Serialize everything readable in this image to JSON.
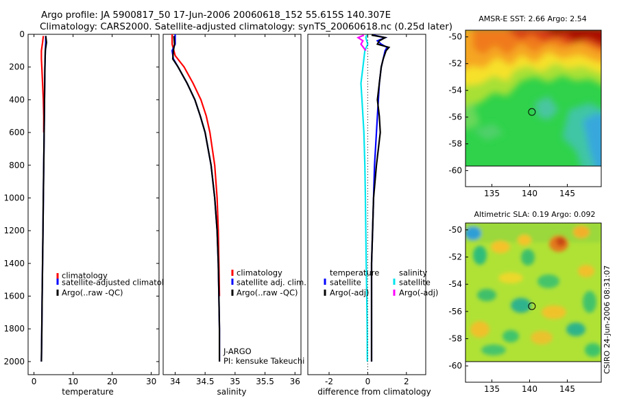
{
  "header": {
    "line1": "Argo profile: JA 5900817_50 17-Jun-2006 20060618_152 55.615S 140.307E",
    "line2": "Climatology: CARS2000. Satellite-adjusted climatology: synTS_20060618.nc (0.25d later)"
  },
  "colors": {
    "climatology": "#ff0000",
    "satellite": "#0000ff",
    "argo": "#000000",
    "sal_satellite": "#00e5ee",
    "sal_argo": "#ff00ff"
  },
  "stamp": "CSIRO 24-Jun-2006 08:31:07",
  "chart_data": [
    {
      "type": "line",
      "id": "temperature",
      "xlabel": "temperature",
      "xlim": [
        -1.5,
        32
      ],
      "xticks": [
        0,
        10,
        20,
        30
      ],
      "ylim": [
        2080,
        0
      ],
      "yticks": [
        0,
        200,
        400,
        600,
        800,
        1000,
        1200,
        1400,
        1600,
        1800,
        2000
      ],
      "legend": [
        "climatology",
        "satellite-adjusted climatology",
        "Argo(..raw -QC)"
      ],
      "series": [
        {
          "name": "climatology",
          "color": "#ff0000",
          "depth": [
            10,
            50,
            100,
            150,
            200,
            300,
            400,
            500,
            600
          ],
          "values": [
            2.4,
            2.2,
            1.9,
            1.9,
            2.0,
            2.2,
            2.4,
            2.5,
            2.5
          ]
        },
        {
          "name": "satellite-adjusted climatology",
          "color": "#0000ff",
          "depth": [
            10,
            50,
            100,
            200,
            400,
            600,
            800,
            1000,
            1200,
            1400,
            1600,
            1800,
            2000
          ],
          "values": [
            3.0,
            3.0,
            2.9,
            2.8,
            2.7,
            2.6,
            2.5,
            2.4,
            2.3,
            2.2,
            2.1,
            2.0,
            1.9
          ]
        },
        {
          "name": "Argo(..raw -QC)",
          "color": "#000000",
          "depth": [
            10,
            50,
            100,
            200,
            400,
            600,
            800,
            1000,
            1200,
            1400,
            1600,
            1800,
            2000
          ],
          "values": [
            3.0,
            3.2,
            2.9,
            2.8,
            2.7,
            2.6,
            2.5,
            2.4,
            2.3,
            2.2,
            2.1,
            2.0,
            1.9
          ]
        }
      ]
    },
    {
      "type": "line",
      "id": "salinity",
      "xlabel": "salinity",
      "xlim": [
        33.8,
        36.1
      ],
      "xticks": [
        34,
        34.5,
        35,
        35.5,
        36
      ],
      "xtick_labels": [
        "34",
        "34.5",
        "35",
        "35.5",
        "36"
      ],
      "ylim": [
        2080,
        0
      ],
      "legend": [
        "climatology",
        "satellite adj. clim.",
        "Argo(..raw -QC)"
      ],
      "annotation": [
        "J-ARGO",
        "PI: kensuke Takeuchi"
      ],
      "series": [
        {
          "name": "climatology",
          "color": "#ff0000",
          "depth": [
            0,
            60,
            130,
            200,
            300,
            400,
            500,
            600,
            800,
            1000,
            1200,
            1400,
            1600
          ],
          "values": [
            33.95,
            33.95,
            34.0,
            34.15,
            34.3,
            34.43,
            34.52,
            34.58,
            34.66,
            34.7,
            34.72,
            34.73,
            34.74
          ]
        },
        {
          "name": "satellite adj. clim.",
          "color": "#0000ff",
          "depth": [
            0,
            60,
            100,
            150,
            200,
            300,
            400,
            500,
            600,
            800,
            1000,
            1200,
            1400,
            1600,
            1800,
            2000
          ],
          "values": [
            34.0,
            34.0,
            33.95,
            33.97,
            34.05,
            34.2,
            34.33,
            34.42,
            34.5,
            34.6,
            34.66,
            34.7,
            34.72,
            34.73,
            34.74,
            34.74
          ]
        },
        {
          "name": "Argo(..raw -QC)",
          "color": "#000000",
          "depth": [
            10,
            60,
            100,
            150,
            200,
            300,
            400,
            500,
            600,
            800,
            1000,
            1200,
            1400,
            1600,
            1800,
            2000
          ],
          "values": [
            33.98,
            33.99,
            33.97,
            33.96,
            34.05,
            34.2,
            34.33,
            34.42,
            34.5,
            34.6,
            34.66,
            34.7,
            34.72,
            34.73,
            34.74,
            34.74
          ]
        }
      ]
    },
    {
      "type": "line",
      "id": "difference",
      "xlabel": "difference from climatology",
      "xlim": [
        -3.1,
        3.0
      ],
      "xticks": [
        -2,
        0,
        2
      ],
      "ylim": [
        2080,
        0
      ],
      "legend_titles": [
        "temperature",
        "salinity"
      ],
      "legend": [
        "satellite",
        "Argo(-adj)",
        "satellite",
        "Argo(-adj)"
      ],
      "series": [
        {
          "name": "temperature satellite",
          "color": "#0000ff",
          "depth": [
            5,
            20,
            40,
            60,
            80,
            100,
            150,
            200,
            300,
            400,
            500,
            600,
            700,
            800,
            1000,
            1200,
            1400,
            1600,
            1800,
            2000
          ],
          "values": [
            0.3,
            0.9,
            0.5,
            0.7,
            1.0,
            0.9,
            0.8,
            0.7,
            0.6,
            0.55,
            0.5,
            0.45,
            0.4,
            0.35,
            0.3,
            0.25,
            0.2,
            0.2,
            0.2,
            0.2
          ]
        },
        {
          "name": "temperature Argo(-adj)",
          "color": "#000000",
          "depth": [
            5,
            20,
            40,
            60,
            80,
            100,
            150,
            200,
            300,
            400,
            500,
            600,
            700,
            800,
            1000,
            1200,
            1400,
            1600,
            1800,
            2000
          ],
          "values": [
            0.2,
            0.9,
            0.6,
            0.5,
            1.1,
            0.95,
            0.8,
            0.7,
            0.6,
            0.5,
            0.6,
            0.65,
            0.55,
            0.45,
            0.3,
            0.25,
            0.2,
            0.2,
            0.2,
            0.2
          ]
        },
        {
          "name": "salinity satellite",
          "color": "#00e5ee",
          "depth": [
            5,
            20,
            60,
            100,
            150,
            200,
            300,
            400,
            500,
            600,
            800,
            1000,
            1200,
            1400,
            1600,
            1800,
            2000
          ],
          "values": [
            -0.05,
            -0.1,
            0.0,
            -0.15,
            -0.2,
            -0.25,
            -0.35,
            -0.3,
            -0.25,
            -0.2,
            -0.15,
            -0.12,
            -0.1,
            -0.08,
            -0.05,
            -0.03,
            -0.02
          ]
        },
        {
          "name": "salinity Argo(-adj)",
          "color": "#ff00ff",
          "depth": [
            5,
            20,
            40,
            60,
            100
          ],
          "values": [
            -0.2,
            -0.5,
            -0.25,
            -0.35,
            -0.1
          ]
        }
      ]
    },
    {
      "type": "heatmap",
      "id": "sst_map",
      "title": "AMSR-E SST: 2.66 Argo: 2.54",
      "xlim": [
        131.5,
        149.5
      ],
      "ylim": [
        -61.2,
        -49.5
      ],
      "xticks": [
        135,
        140,
        145
      ],
      "yticks": [
        -50,
        -52,
        -54,
        -56,
        -58,
        -60
      ],
      "float_position": [
        140.307,
        -55.615
      ]
    },
    {
      "type": "heatmap",
      "id": "sla_map",
      "title": "Altimetric SLA: 0.19 Argo: 0.092",
      "xlim": [
        131.5,
        149.5
      ],
      "ylim": [
        -61.2,
        -49.5
      ],
      "xticks": [
        135,
        140,
        145
      ],
      "yticks": [
        -50,
        -52,
        -54,
        -56,
        -58,
        -60
      ],
      "float_position": [
        140.307,
        -55.615
      ]
    }
  ]
}
